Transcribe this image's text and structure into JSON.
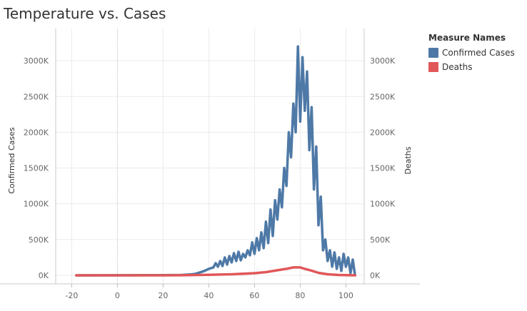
{
  "chart_data": {
    "type": "line",
    "title": "Temperature vs. Cases",
    "ylabel": "Confirmed Cases",
    "y2label": "Deaths",
    "xlim": [
      -27,
      108
    ],
    "ylim": [
      -120000,
      3450000
    ],
    "xticks": [
      -20,
      0,
      20,
      40,
      60,
      80,
      100
    ],
    "yticks": [
      0,
      500000,
      1000000,
      1500000,
      2000000,
      2500000,
      3000000
    ],
    "ytick_labels": [
      "0K",
      "500K",
      "1000K",
      "1500K",
      "2000K",
      "2500K",
      "3000K"
    ],
    "legend_title": "Measure Names",
    "legend_position": "right",
    "grid": true,
    "series": [
      {
        "name": "Confirmed Cases",
        "color": "#4e79a7",
        "points": [
          [
            -18,
            0
          ],
          [
            0,
            500
          ],
          [
            20,
            2000
          ],
          [
            28,
            5000
          ],
          [
            32,
            12000
          ],
          [
            34,
            20000
          ],
          [
            36,
            40000
          ],
          [
            38,
            60000
          ],
          [
            40,
            90000
          ],
          [
            42,
            110000
          ],
          [
            43,
            170000
          ],
          [
            44,
            120000
          ],
          [
            45,
            200000
          ],
          [
            46,
            130000
          ],
          [
            47,
            250000
          ],
          [
            48,
            150000
          ],
          [
            49,
            270000
          ],
          [
            50,
            180000
          ],
          [
            51,
            310000
          ],
          [
            52,
            200000
          ],
          [
            53,
            330000
          ],
          [
            54,
            210000
          ],
          [
            55,
            300000
          ],
          [
            56,
            250000
          ],
          [
            57,
            350000
          ],
          [
            58,
            280000
          ],
          [
            59,
            460000
          ],
          [
            60,
            300000
          ],
          [
            61,
            520000
          ],
          [
            62,
            350000
          ],
          [
            63,
            600000
          ],
          [
            64,
            380000
          ],
          [
            65,
            750000
          ],
          [
            66,
            450000
          ],
          [
            67,
            920000
          ],
          [
            68,
            550000
          ],
          [
            69,
            1050000
          ],
          [
            70,
            780000
          ],
          [
            71,
            1200000
          ],
          [
            72,
            950000
          ],
          [
            73,
            1500000
          ],
          [
            74,
            1250000
          ],
          [
            75,
            2000000
          ],
          [
            76,
            1650000
          ],
          [
            77,
            2400000
          ],
          [
            78,
            2000000
          ],
          [
            79,
            3200000
          ],
          [
            80,
            2150000
          ],
          [
            81,
            3050000
          ],
          [
            82,
            2300000
          ],
          [
            83,
            2850000
          ],
          [
            84,
            1750000
          ],
          [
            85,
            2350000
          ],
          [
            86,
            1200000
          ],
          [
            87,
            1800000
          ],
          [
            88,
            700000
          ],
          [
            89,
            1100000
          ],
          [
            90,
            350000
          ],
          [
            91,
            500000
          ],
          [
            92,
            200000
          ],
          [
            93,
            350000
          ],
          [
            94,
            120000
          ],
          [
            95,
            320000
          ],
          [
            96,
            90000
          ],
          [
            97,
            250000
          ],
          [
            98,
            60000
          ],
          [
            99,
            300000
          ],
          [
            100,
            120000
          ],
          [
            101,
            250000
          ],
          [
            102,
            30000
          ],
          [
            103,
            220000
          ],
          [
            104,
            0
          ]
        ]
      },
      {
        "name": "Deaths",
        "color": "#e15759",
        "points": [
          [
            -18,
            0
          ],
          [
            0,
            0
          ],
          [
            20,
            0
          ],
          [
            30,
            2000
          ],
          [
            40,
            8000
          ],
          [
            50,
            15000
          ],
          [
            60,
            30000
          ],
          [
            65,
            45000
          ],
          [
            70,
            70000
          ],
          [
            74,
            90000
          ],
          [
            77,
            110000
          ],
          [
            80,
            110000
          ],
          [
            82,
            90000
          ],
          [
            85,
            65000
          ],
          [
            88,
            35000
          ],
          [
            92,
            15000
          ],
          [
            97,
            5000
          ],
          [
            104,
            0
          ]
        ]
      }
    ]
  }
}
